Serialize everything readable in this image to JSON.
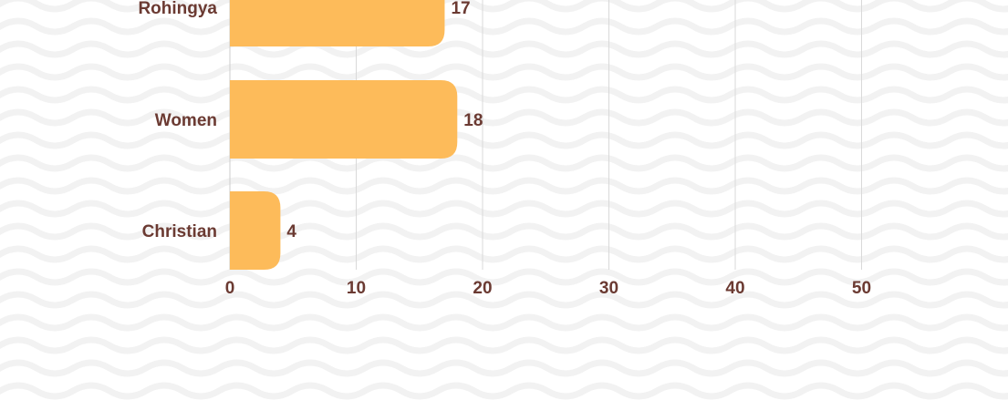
{
  "chart_data": {
    "type": "bar",
    "orientation": "horizontal",
    "categories": [
      "Rohingya",
      "Women",
      "Christian"
    ],
    "values": [
      17,
      18,
      4
    ],
    "value_labels": [
      "17",
      "18",
      "4"
    ],
    "xlim": [
      0,
      60
    ],
    "x_ticks": [
      "0",
      "10",
      "20",
      "30",
      "40",
      "50"
    ],
    "grid": "vertical",
    "title": "",
    "xlabel": "",
    "ylabel": ""
  },
  "colors": {
    "bar": "#fdbb5a",
    "text": "#6b3a32",
    "grid": "#d9d9d9",
    "background_pattern": "#f2f2f2"
  }
}
